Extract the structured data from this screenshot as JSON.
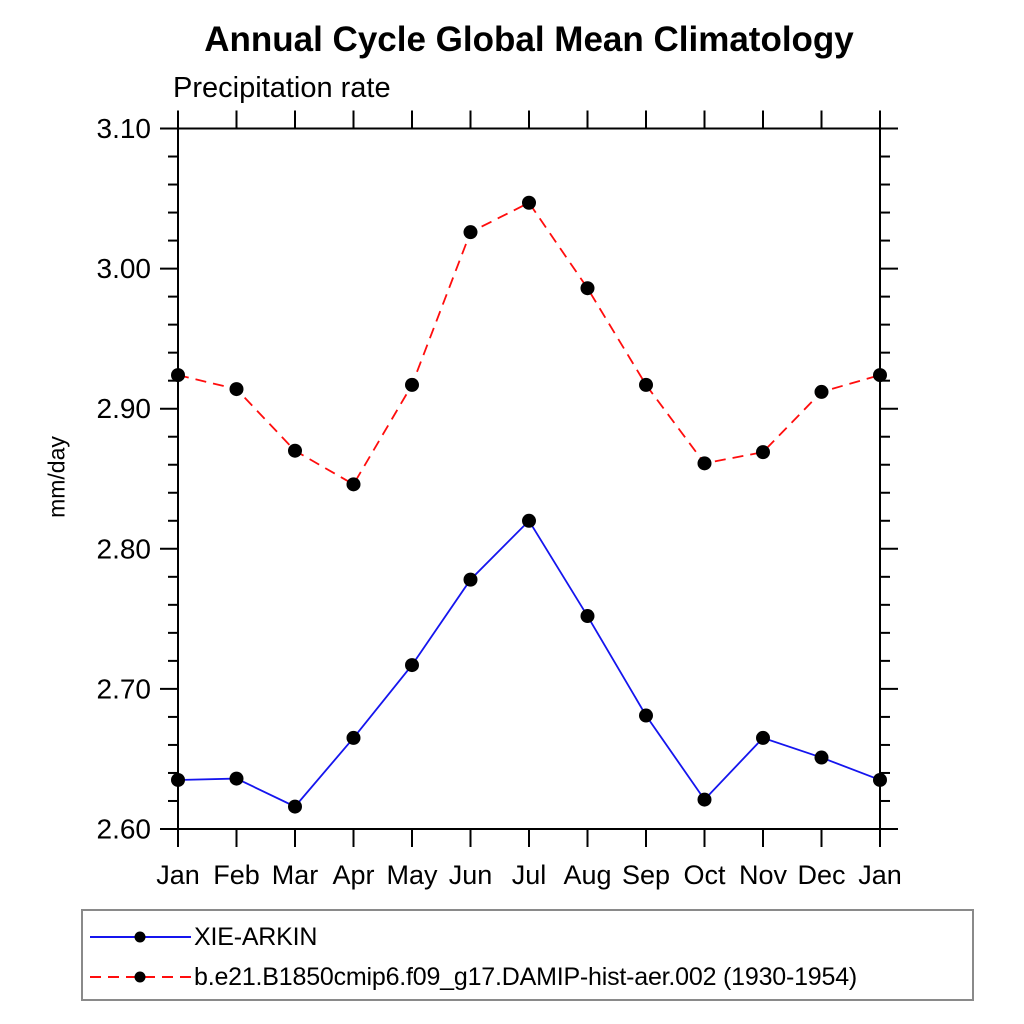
{
  "chart_data": {
    "type": "line",
    "title": "Annual Cycle Global Mean Climatology",
    "subtitle": "Precipitation rate",
    "ylabel": "mm/day",
    "xlabel": "",
    "categories": [
      "Jan",
      "Feb",
      "Mar",
      "Apr",
      "May",
      "Jun",
      "Jul",
      "Aug",
      "Sep",
      "Oct",
      "Nov",
      "Dec",
      "Jan"
    ],
    "ylim": [
      2.6,
      3.1
    ],
    "y_major_step": 0.1,
    "y_minor_step": 0.02,
    "y_tick_labels": [
      "2.60",
      "2.70",
      "2.80",
      "2.90",
      "3.00",
      "3.10"
    ],
    "grid": false,
    "legend_position": "bottom-left-box",
    "frame_color": "#000000",
    "marker": "filled-circle",
    "marker_color": "#000000",
    "series": [
      {
        "name": "XIE-ARKIN",
        "line_color": "#1515ee",
        "line_style": "solid",
        "values": [
          2.635,
          2.636,
          2.616,
          2.665,
          2.717,
          2.778,
          2.82,
          2.752,
          2.681,
          2.621,
          2.665,
          2.651,
          2.635
        ]
      },
      {
        "name": "b.e21.B1850cmip6.f09_g17.DAMIP-hist-aer.002 (1930-1954)",
        "line_color": "#ff0d0d",
        "line_style": "dashed",
        "values": [
          2.924,
          2.914,
          2.87,
          2.846,
          2.917,
          3.026,
          3.047,
          2.986,
          2.917,
          2.861,
          2.869,
          2.912,
          2.924
        ]
      }
    ]
  }
}
